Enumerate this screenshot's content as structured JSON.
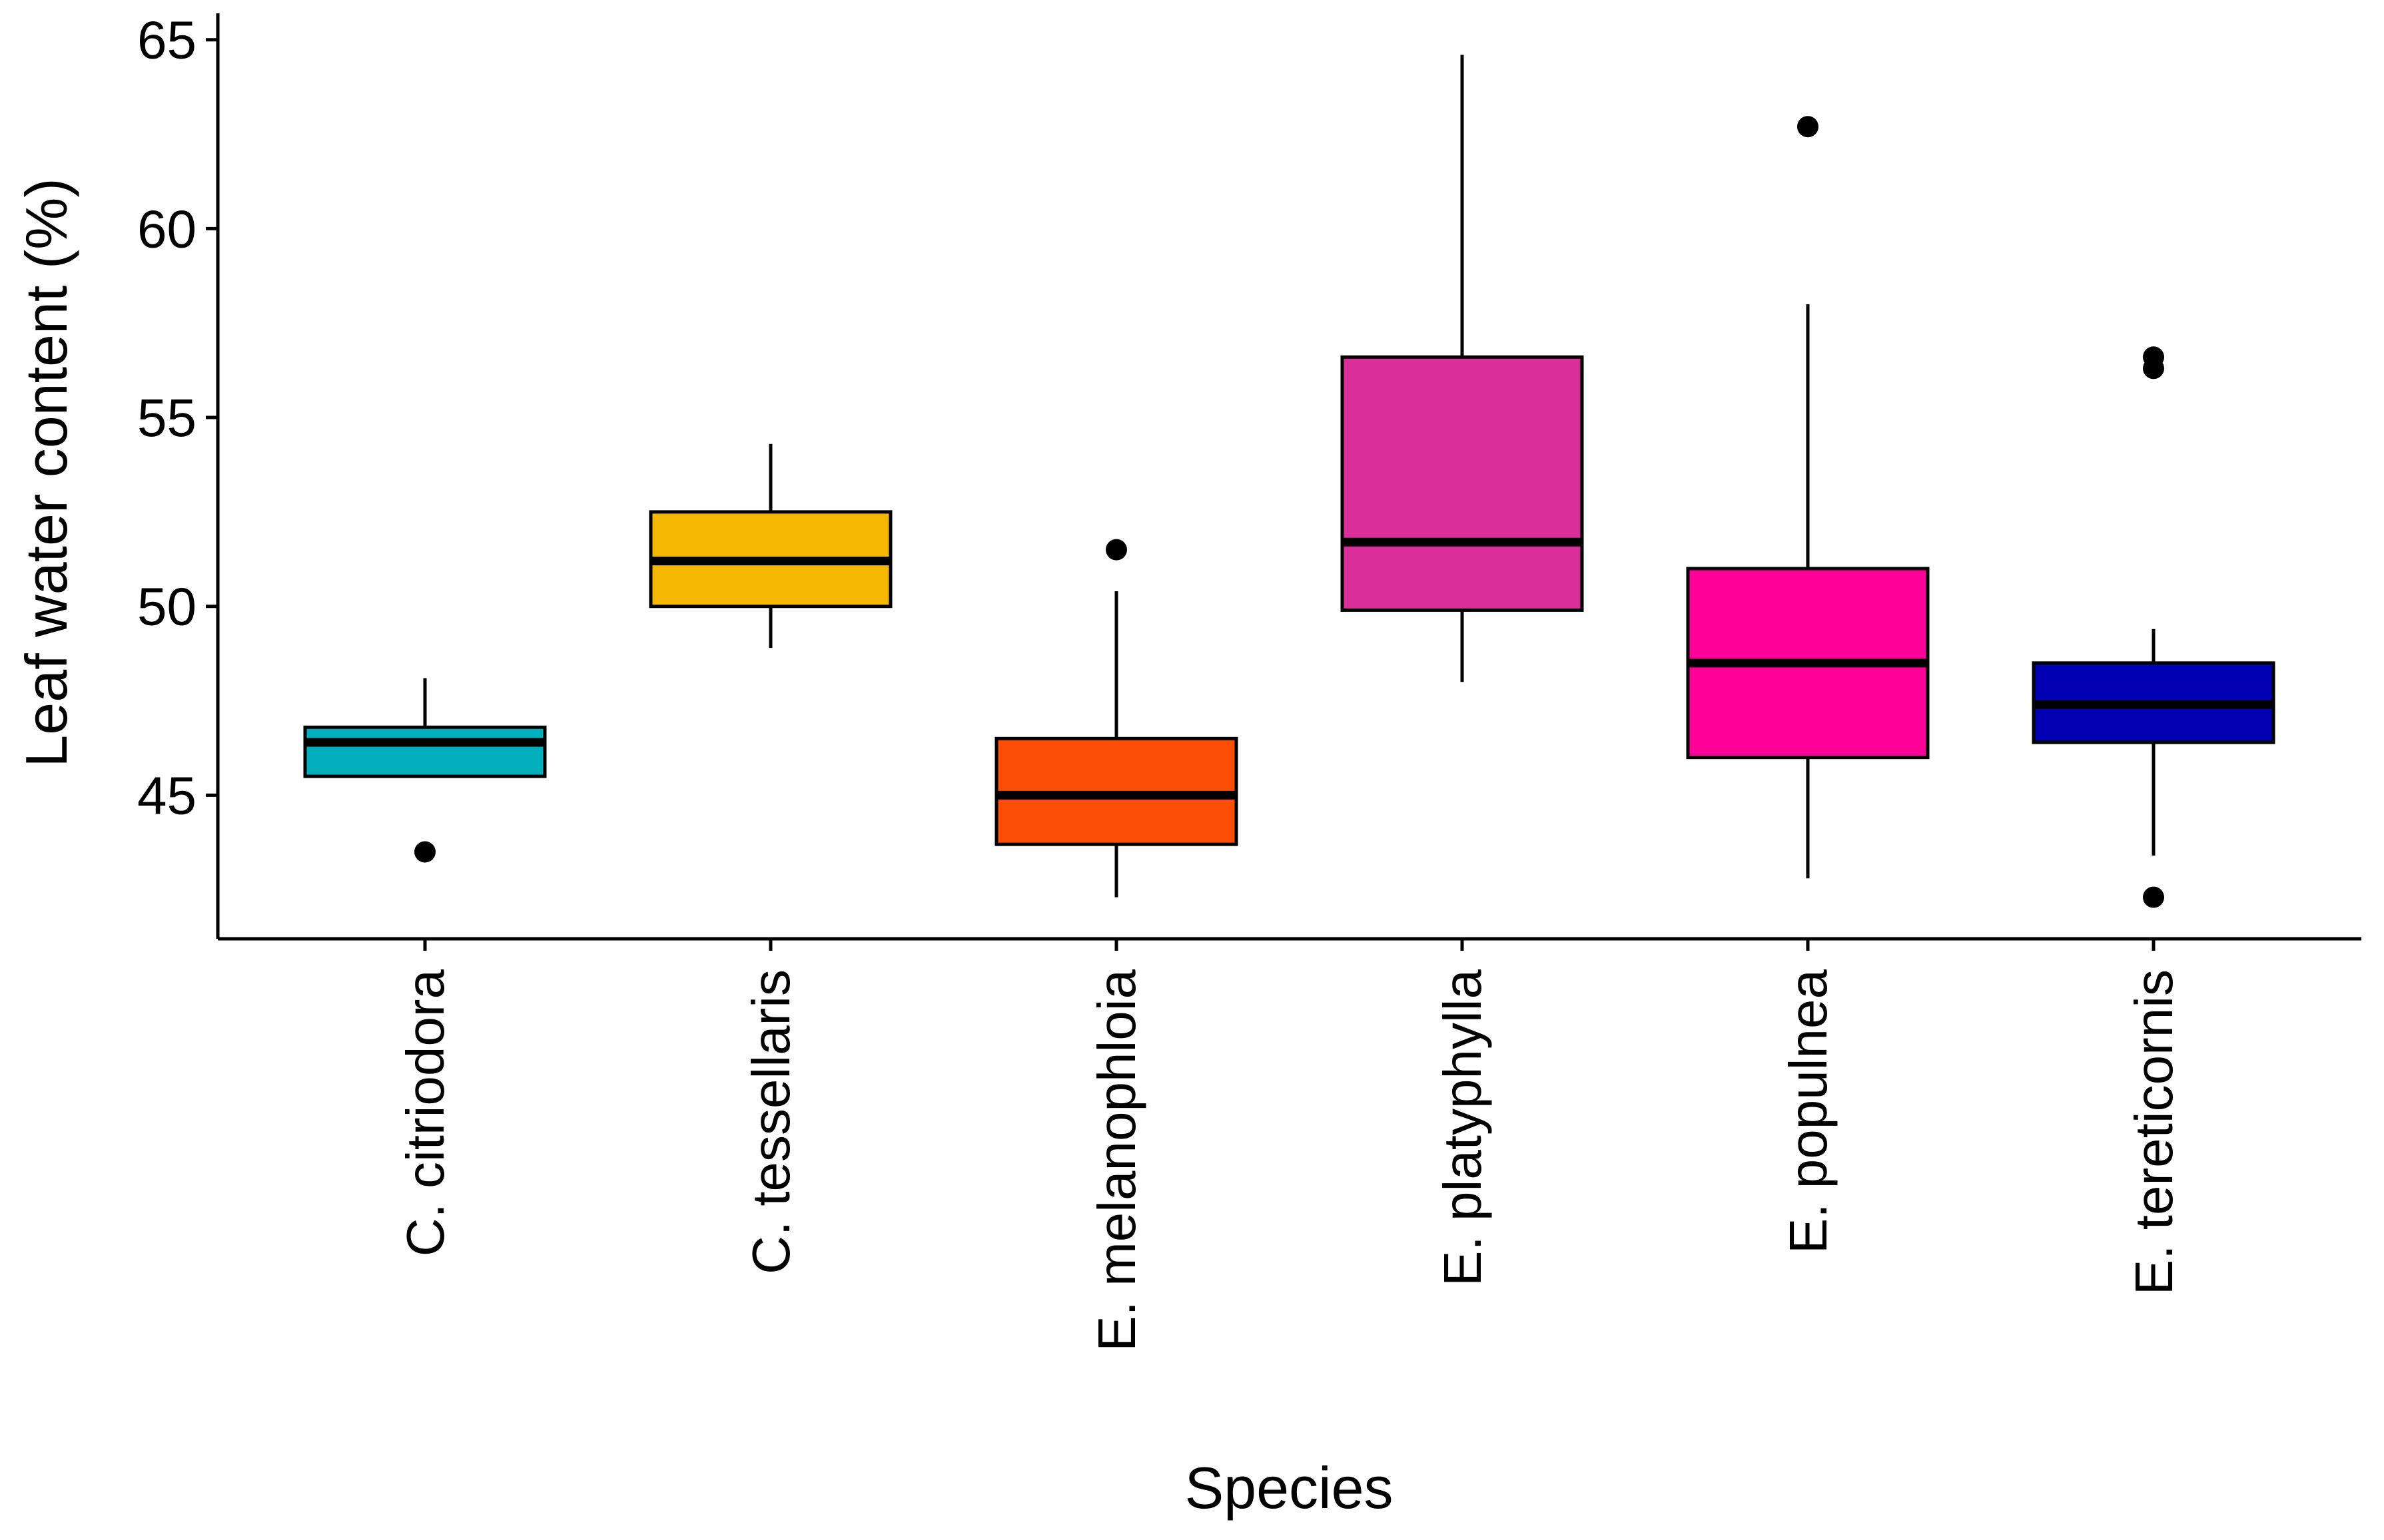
{
  "chart_data": {
    "type": "boxplot",
    "xlabel": "Species",
    "ylabel": "Leaf water content (%)",
    "ylim": [
      41.2,
      65.7
    ],
    "yticks": [
      45,
      50,
      55,
      60,
      65
    ],
    "categories": [
      "C. citriodora",
      "C. tessellaris",
      "E. melanophloia",
      "E. platyphylla",
      "E. populnea",
      "E. tereticornis"
    ],
    "series": [
      {
        "name": "C. citriodora",
        "color": "#00AFBB",
        "whisker_low": 45.5,
        "q1": 45.5,
        "median": 46.4,
        "q3": 46.8,
        "whisker_high": 48.1,
        "outliers": [
          43.5
        ]
      },
      {
        "name": "C. tessellaris",
        "color": "#F5B800",
        "whisker_low": 48.9,
        "q1": 50.0,
        "median": 51.2,
        "q3": 52.5,
        "whisker_high": 54.3,
        "outliers": []
      },
      {
        "name": "E. melanophloia",
        "color": "#FC4E07",
        "whisker_low": 42.3,
        "q1": 43.7,
        "median": 45.0,
        "q3": 46.5,
        "whisker_high": 50.4,
        "outliers": [
          51.5
        ]
      },
      {
        "name": "E. platyphylla",
        "color": "#D92F9B",
        "whisker_low": 48.0,
        "q1": 49.9,
        "median": 51.7,
        "q3": 56.6,
        "whisker_high": 64.6,
        "outliers": []
      },
      {
        "name": "E. populnea",
        "color": "#FF0099",
        "whisker_low": 42.8,
        "q1": 46.0,
        "median": 48.5,
        "q3": 51.0,
        "whisker_high": 58.0,
        "outliers": [
          62.7
        ]
      },
      {
        "name": "E. tereticornis",
        "color": "#0000B3",
        "whisker_low": 43.4,
        "q1": 46.4,
        "median": 47.4,
        "q3": 48.5,
        "whisker_high": 49.4,
        "outliers": [
          56.6,
          56.3,
          42.3
        ]
      }
    ]
  }
}
